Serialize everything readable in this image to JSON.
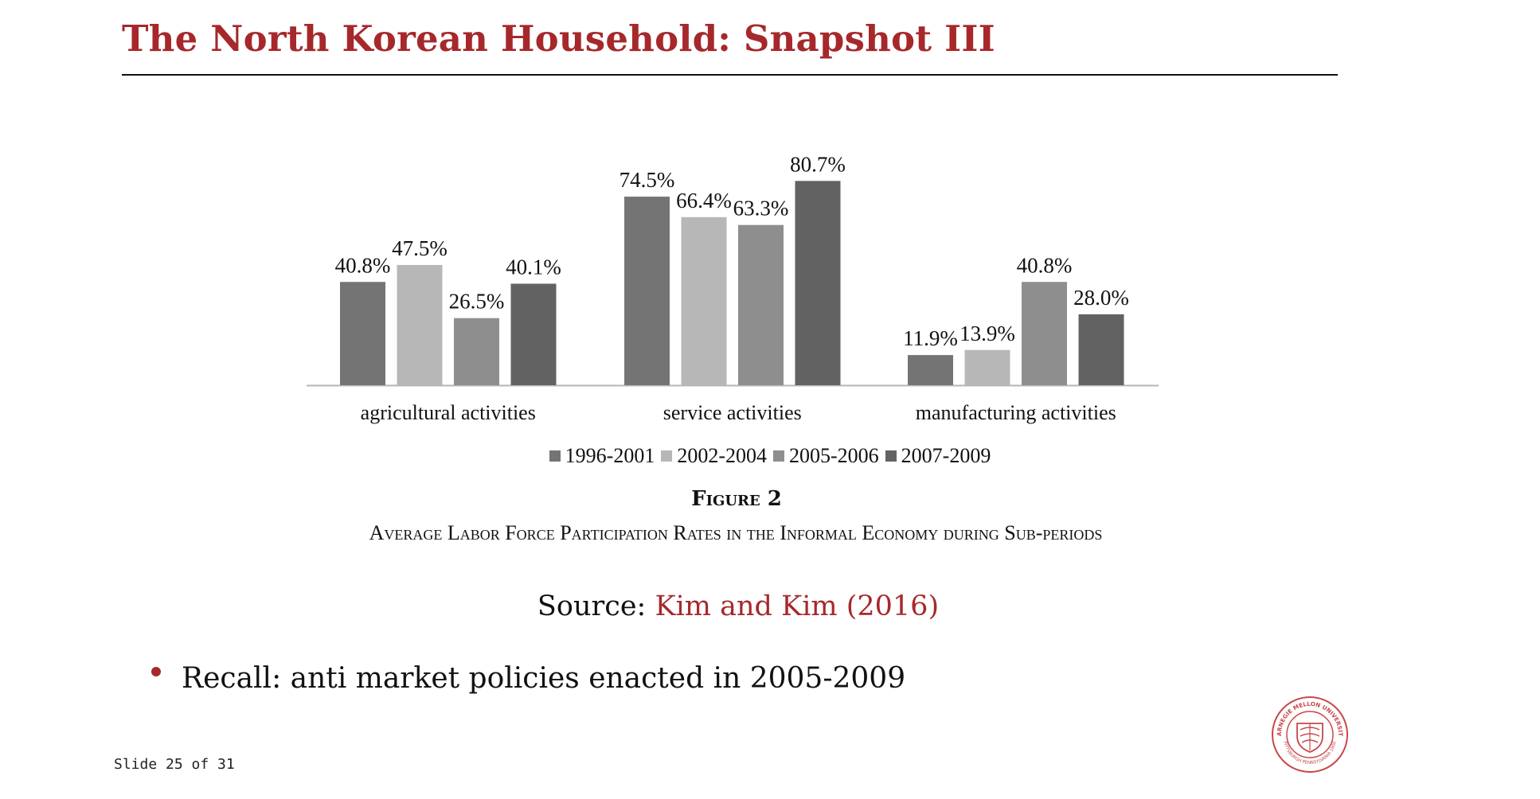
{
  "slide": {
    "title": "The North Korean Household: Snapshot III",
    "slide_number": "Slide 25 of 31"
  },
  "figure": {
    "number": "Figure 2",
    "caption": "Average Labor Force Participation Rates in the Informal Economy during Sub-periods"
  },
  "source": {
    "label": "Source:",
    "citation": "Kim and Kim (2016)"
  },
  "bullets": [
    "Recall: anti market policies enacted in 2005-2009"
  ],
  "logo": {
    "name": "carnegie-mellon-seal",
    "text_top": "CARNEGIE MELLON UNIVERSITY",
    "text_bottom": "PITTSBURGH PENNSYLVANIA 1900"
  },
  "colors": {
    "accent": "#a6282b"
  },
  "chart_data": {
    "type": "bar",
    "categories": [
      "agricultural activities",
      "service activities",
      "manufacturing activities"
    ],
    "series": [
      {
        "name": "1996-2001",
        "color": "#747474",
        "values": [
          40.8,
          74.5,
          11.9
        ],
        "labels": [
          "40.8%",
          "74.5%",
          "11.9%"
        ]
      },
      {
        "name": "2002-2004",
        "color": "#b7b7b7",
        "values": [
          47.5,
          66.4,
          13.9
        ],
        "labels": [
          "47.5%",
          "66.4%",
          "13.9%"
        ]
      },
      {
        "name": "2005-2006",
        "color": "#8e8e8e",
        "values": [
          26.5,
          63.3,
          40.8
        ],
        "labels": [
          "26.5%",
          "63.3%",
          "40.8%"
        ]
      },
      {
        "name": "2007-2009",
        "color": "#626262",
        "values": [
          40.1,
          80.7,
          28.0
        ],
        "labels": [
          "40.1%",
          "80.7%",
          "28.0%"
        ]
      }
    ],
    "ylim": [
      0,
      100
    ],
    "grid": false,
    "legend_position": "bottom"
  }
}
